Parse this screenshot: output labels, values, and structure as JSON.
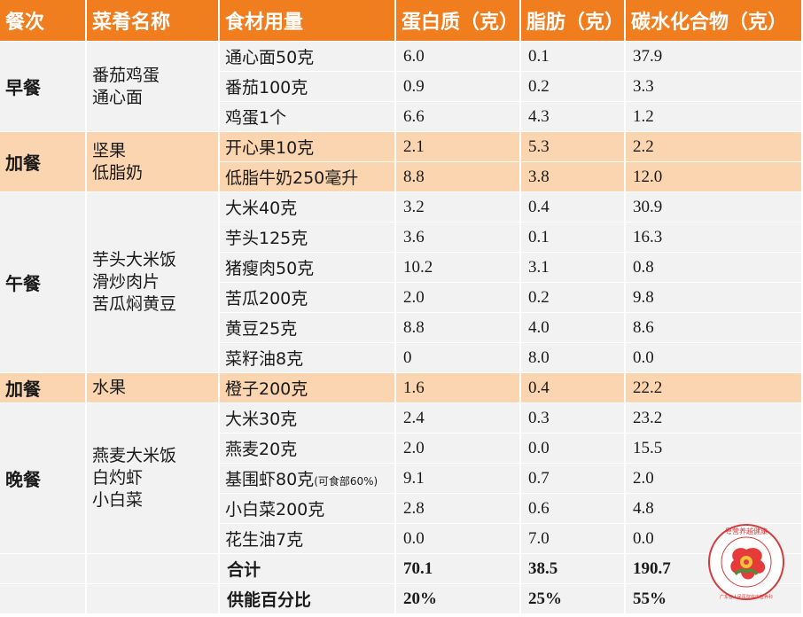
{
  "headers": [
    "餐次",
    "菜肴名称",
    "食材用量",
    "蛋白质（克）",
    "脂肪（克）",
    "碳水化合物（克）"
  ],
  "meals": [
    {
      "meal": "早餐",
      "snack": false,
      "dishes": [
        "番茄鸡蛋",
        "通心面"
      ],
      "rows": [
        {
          "ingredient": "通心面50克",
          "protein": "6.0",
          "fat": "0.1",
          "carb": "37.9"
        },
        {
          "ingredient": "番茄100克",
          "protein": "0.9",
          "fat": "0.2",
          "carb": "3.3"
        },
        {
          "ingredient": "鸡蛋1个",
          "protein": "6.6",
          "fat": "4.3",
          "carb": "1.2"
        }
      ]
    },
    {
      "meal": "加餐",
      "snack": true,
      "dishes": [
        "坚果",
        "低脂奶"
      ],
      "rows": [
        {
          "ingredient": "开心果10克",
          "protein": "2.1",
          "fat": "5.3",
          "carb": "2.2"
        },
        {
          "ingredient": "低脂牛奶250毫升",
          "protein": "8.8",
          "fat": "3.8",
          "carb": "12.0"
        }
      ]
    },
    {
      "meal": "午餐",
      "snack": false,
      "dishes": [
        "芋头大米饭",
        "滑炒肉片",
        "苦瓜焖黄豆"
      ],
      "rows": [
        {
          "ingredient": "大米40克",
          "protein": "3.2",
          "fat": "0.4",
          "carb": "30.9"
        },
        {
          "ingredient": "芋头125克",
          "protein": "3.6",
          "fat": "0.1",
          "carb": "16.3"
        },
        {
          "ingredient": "猪瘦肉50克",
          "protein": "10.2",
          "fat": "3.1",
          "carb": "0.8"
        },
        {
          "ingredient": "苦瓜200克",
          "protein": "2.0",
          "fat": "0.2",
          "carb": "9.8"
        },
        {
          "ingredient": "黄豆25克",
          "protein": "8.8",
          "fat": "4.0",
          "carb": "8.6"
        },
        {
          "ingredient": "菜籽油8克",
          "protein": "0",
          "fat": "8.0",
          "carb": "0.0"
        }
      ]
    },
    {
      "meal": "加餐",
      "snack": true,
      "dishes": [
        "水果"
      ],
      "rows": [
        {
          "ingredient": "橙子200克",
          "protein": "1.6",
          "fat": "0.4",
          "carb": "22.2"
        }
      ]
    },
    {
      "meal": "晚餐",
      "snack": false,
      "dishes": [
        "燕麦大米饭",
        "白灼虾",
        "小白菜"
      ],
      "rows": [
        {
          "ingredient": "大米30克",
          "protein": "2.4",
          "fat": "0.3",
          "carb": "23.2"
        },
        {
          "ingredient": "燕麦20克",
          "protein": "2.0",
          "fat": "0.0",
          "carb": "15.5"
        },
        {
          "ingredient": "基围虾80克",
          "ingredient_note": "(可食部60%)",
          "protein": "9.1",
          "fat": "0.7",
          "carb": "2.0"
        },
        {
          "ingredient": "小白菜200克",
          "protein": "2.8",
          "fat": "0.6",
          "carb": "4.8"
        },
        {
          "ingredient": "花生油7克",
          "protein": "0.0",
          "fat": "7.0",
          "carb": "0.0"
        }
      ]
    }
  ],
  "totals": [
    {
      "label": "合计",
      "protein": "70.1",
      "fat": "38.5",
      "carb": "190.7"
    },
    {
      "label": "供能百分比",
      "protein": "20%",
      "fat": "25%",
      "carb": "55%"
    }
  ],
  "logo": {
    "top_text": "粤营养越健康",
    "bottom_text": "广东省人民医院临床营养科",
    "colors": {
      "ring": "#d23c3c",
      "leaf": "#3a9a3a",
      "flower": "#e63b3b",
      "center": "#f3c23a"
    }
  }
}
